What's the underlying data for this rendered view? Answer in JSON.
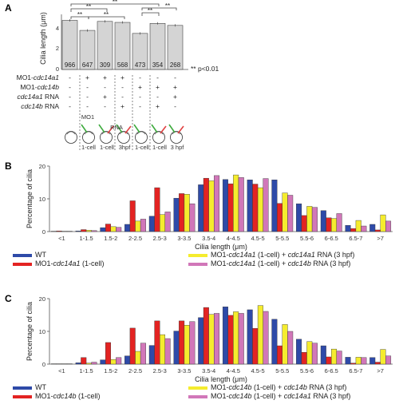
{
  "panel_a": {
    "letter": "A",
    "ylabel": "Cilia length (μm)",
    "yticks": [
      "0",
      "2",
      "4"
    ],
    "significance_marks": [
      "**",
      "**",
      "**",
      "**",
      "**",
      "**"
    ],
    "significance_note": "** p<0.01",
    "row_labels": [
      {
        "prefix": "MO1-",
        "name": "cdc14a1",
        "suffix": ""
      },
      {
        "prefix": "MO1-",
        "name": "cdc14b",
        "suffix": ""
      },
      {
        "prefix": "",
        "name": "cdc14a1",
        "suffix": " RNA"
      },
      {
        "prefix": "",
        "name": "cdc14b",
        "suffix": " RNA"
      }
    ],
    "signs": [
      [
        "-",
        "+",
        "+",
        "+",
        "-",
        "-",
        "-"
      ],
      [
        "-",
        "-",
        "-",
        "-",
        "+",
        "+",
        "+"
      ],
      [
        "-",
        "-",
        "+",
        "-",
        "-",
        "-",
        "+"
      ],
      [
        "-",
        "-",
        "-",
        "+",
        "-",
        "+",
        "-"
      ]
    ],
    "embryo_labels": {
      "mo": "MO1",
      "rna": "RNA"
    },
    "stage_labels": [
      "1-cell",
      "1-cell",
      "3hpf",
      "1-cell",
      "1-cell",
      "3 hpf"
    ]
  },
  "panel_b": {
    "letter": "B"
  },
  "panel_c": {
    "letter": "C"
  },
  "chart_data": [
    {
      "type": "bar",
      "panel": "A",
      "categories": [
        "1",
        "2",
        "3",
        "4",
        "5",
        "6",
        "7"
      ],
      "values": [
        4.9,
        3.9,
        4.8,
        4.7,
        3.6,
        4.6,
        4.4
      ],
      "counts": [
        "966",
        "647",
        "309",
        "568",
        "473",
        "354",
        "268"
      ],
      "ylabel": "Cilia length (μm)",
      "ylim": [
        0,
        5.5
      ],
      "color": "#d4d4d4"
    },
    {
      "type": "bar",
      "panel": "B",
      "categories": [
        "<1",
        "1-1.5",
        "1.5-2",
        "2-2.5",
        "2.5-3",
        "3-3.5",
        "3.5-4",
        "4-4.5",
        "4.5-5",
        "5-5.5",
        "5.5-6",
        "6-6.5",
        "6.5-7",
        ">7"
      ],
      "series": [
        {
          "name": "WT",
          "color": "#2e4aa8",
          "values": [
            0.1,
            0.2,
            1.2,
            2.2,
            4.7,
            10.2,
            14.3,
            15.9,
            15.8,
            15.8,
            8.5,
            6.4,
            1.9,
            2.2
          ]
        },
        {
          "name": "MO1-cdc14a1 (1-cell)",
          "color": "#e32322",
          "values": [
            0.2,
            0.6,
            2.3,
            9.4,
            13.4,
            11.6,
            16.3,
            14.6,
            14.5,
            8.6,
            4.9,
            4.2,
            0.9,
            0.5
          ]
        },
        {
          "name": "MO1-cdc14a1 (1-cell) + cdc14a1 RNA (3 hpf)",
          "color": "#f5ec2e",
          "values": [
            0.1,
            0.4,
            1.5,
            3.2,
            5.2,
            11.4,
            15.5,
            17.3,
            13.4,
            11.8,
            7.7,
            4.0,
            3.4,
            5.1
          ]
        },
        {
          "name": "MO1-cdc14a1 (1-cell) + cdc14b RNA (3 hpf)",
          "color": "#d177b9",
          "values": [
            0.1,
            0.3,
            1.3,
            3.8,
            6.0,
            8.5,
            17.1,
            16.5,
            16.2,
            11.1,
            7.4,
            5.5,
            1.7,
            3.2
          ]
        }
      ],
      "xlabel": "Cilia length (μm)",
      "ylabel": "Percentage of cilia",
      "ylim": [
        0,
        20
      ],
      "legend": "bottom"
    },
    {
      "type": "bar",
      "panel": "C",
      "categories": [
        "<1",
        "1-1.5",
        "1.5-2",
        "2-2.5",
        "2.5-3",
        "3-3.5",
        "3.5-4",
        "4-4.5",
        "4.5-5",
        "5-5.5",
        "5.5-6",
        "6-6.5",
        "6.5-7",
        ">7"
      ],
      "series": [
        {
          "name": "WT",
          "color": "#2e4aa8",
          "values": [
            0.1,
            0.4,
            1.3,
            2.5,
            5.7,
            10.1,
            14.2,
            17.5,
            16.6,
            13.7,
            7.6,
            5.6,
            2.1,
            2.0
          ]
        },
        {
          "name": "MO1-cdc14b (1-cell)",
          "color": "#e32322",
          "values": [
            0.1,
            2.0,
            6.6,
            11.0,
            13.2,
            13.2,
            17.3,
            14.9,
            10.9,
            5.6,
            3.6,
            2.2,
            0.3,
            0.6
          ]
        },
        {
          "name": "MO1-cdc14b (1-cell) + cdc14b RNA (3 hpf)",
          "color": "#f5ec2e",
          "values": [
            0.1,
            0.3,
            1.4,
            3.9,
            9.0,
            11.9,
            15.2,
            16.0,
            17.9,
            12.1,
            6.9,
            4.6,
            2.1,
            4.5
          ]
        },
        {
          "name": "MO1-cdc14b (1-cell) + cdc14a1 RNA (3 hpf)",
          "color": "#d177b9",
          "values": [
            0.1,
            0.6,
            2.0,
            6.4,
            7.8,
            13.0,
            15.5,
            15.5,
            16.1,
            10.0,
            6.4,
            4.0,
            2.0,
            2.5
          ]
        }
      ],
      "xlabel": "Cilia length (μm)",
      "ylabel": "Percentage of cilia",
      "ylim": [
        0,
        20
      ],
      "legend": "bottom"
    }
  ]
}
